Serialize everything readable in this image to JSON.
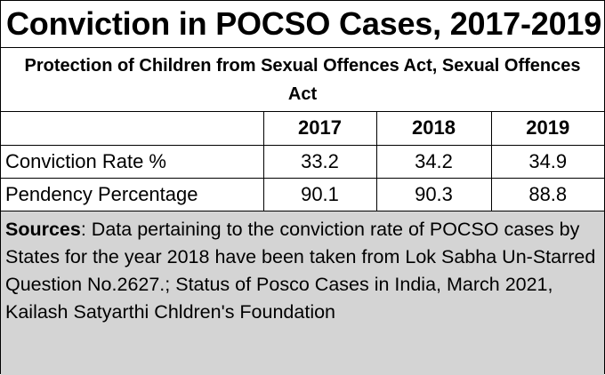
{
  "title": "Conviction in POCSO Cases, 2017-2019",
  "subtitle": "Protection of Children from Sexual Offences Act, Sexual Offences Act",
  "table": {
    "columns": [
      "",
      "2017",
      "2018",
      "2019"
    ],
    "rows": [
      {
        "label": "Conviction Rate %",
        "values": [
          "33.2",
          "34.2",
          "34.9"
        ]
      },
      {
        "label": "Pendency Percentage",
        "values": [
          "90.1",
          "90.3",
          "88.8"
        ]
      }
    ]
  },
  "sources": {
    "label": "Sources",
    "text": ": Data pertaining to the conviction rate of POCSO cases by States for the year 2018 have been taken from Lok Sabha Un-Starred Question No.2627.;  Status of Posco Cases in India, March 2021, Kailash Satyarthi Chldren's Foundation"
  },
  "colors": {
    "sources_background": "#d4d4d4",
    "border": "#000000"
  }
}
